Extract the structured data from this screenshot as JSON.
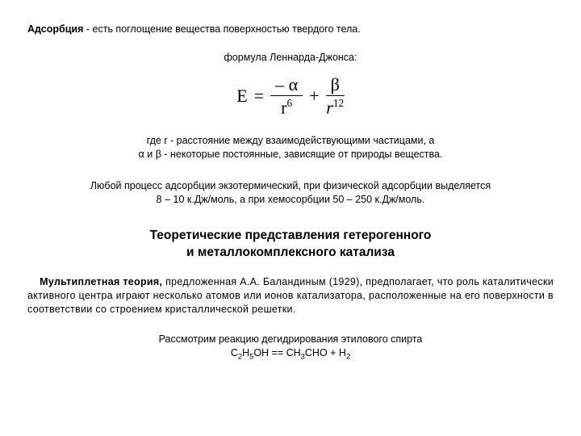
{
  "definition": {
    "term": "Адсорбция",
    "sep": " - ",
    "text": "есть поглощение вещества поверхностью твердого тела."
  },
  "formula_label": "формула Леннарда-Джонса:",
  "formula": {
    "lhs": "E",
    "eq": "=",
    "num1": "– α",
    "den1_base": "r",
    "den1_exp": "6",
    "plus": "+",
    "num2": "β",
    "den2_base": "r",
    "den2_exp": "12"
  },
  "where_line1": "где r - расстояние между взаимодействующими частицами, а",
  "where_line2": "α и β - некоторые постоянные, зависящие от природы вещества.",
  "process_line1": "Любой процесс адсорбции экзотермический, при физической адсорбции выделяется",
  "process_line2": "8 – 10 к.Дж/моль, а при хемосорбции  50 – 250 к.Дж/моль.",
  "section_title_l1": "Теоретические представления гетерогенного",
  "section_title_l2": "и металлокомплексного катализа",
  "theory": {
    "lead": "Мультиплетная теория,",
    "rest": " предложенная А.А. Баландиным (1929), предполагает, что роль каталитически активного центра играют несколько атомов или ионов катализатора, расположенные на его поверхности в соответствии со строением кристаллической решетки."
  },
  "reaction_intro": "Рассмотрим реакцию дегидрирования этилового спирта",
  "reaction_eq": {
    "r1": "C",
    "r1s1": "2",
    "r2": "H",
    "r2s1": "5",
    "r3": "OH   ==   CH",
    "r3s1": "3",
    "r4": "CHO + H",
    "r4s1": "2"
  }
}
